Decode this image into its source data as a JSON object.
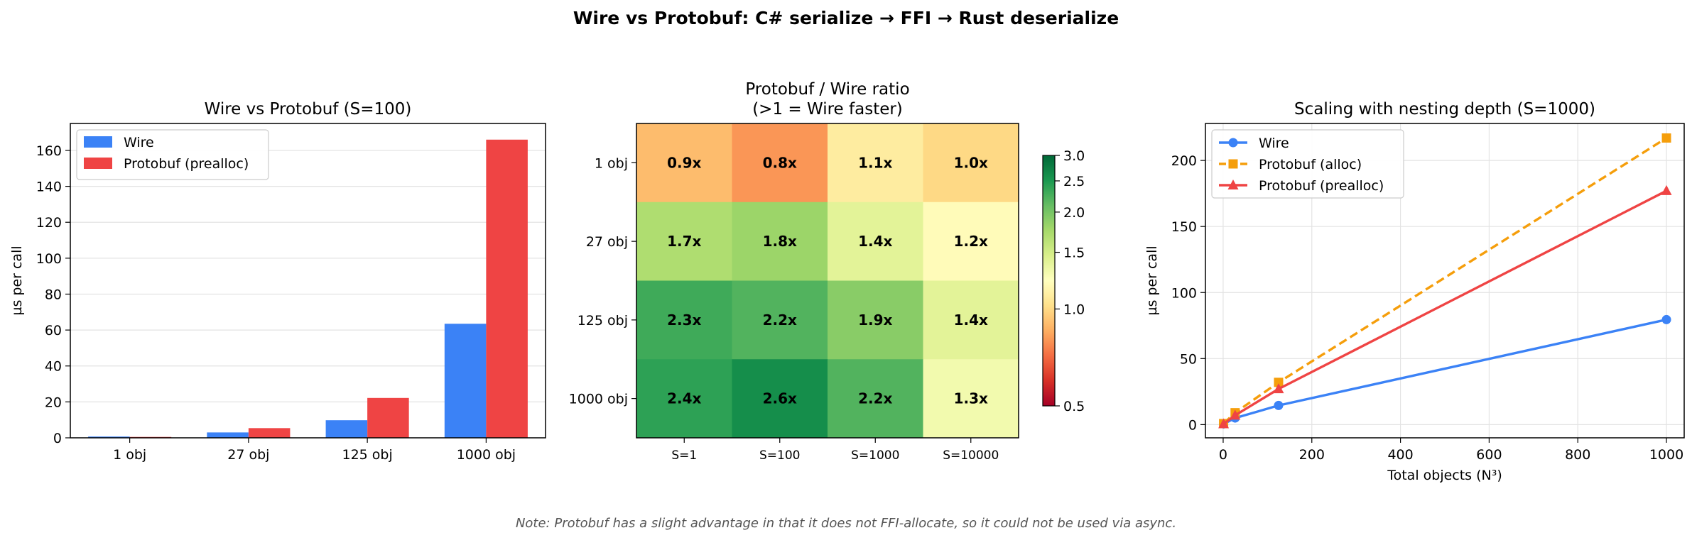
{
  "suptitle": "Wire vs Protobuf: C# serialize → FFI → Rust deserialize",
  "note": "Note: Protobuf has a slight advantage in that it does not FFI-allocate, so it could not be used via async.",
  "chart_data": [
    {
      "type": "bar",
      "title": "Wire vs Protobuf (S=100)",
      "xlabel": "",
      "ylabel": "µs per call",
      "categories": [
        "1 obj",
        "27 obj",
        "125 obj",
        "1000 obj"
      ],
      "series": [
        {
          "name": "Wire",
          "values": [
            0.7,
            3.0,
            9.8,
            63.5
          ],
          "color": "#3b82f6"
        },
        {
          "name": "Protobuf (prealloc)",
          "values": [
            0.5,
            5.4,
            22.2,
            166.0
          ],
          "color": "#ef4444"
        }
      ],
      "ylim": [
        0,
        175
      ],
      "yticks": [
        0,
        20,
        40,
        60,
        80,
        100,
        120,
        140,
        160
      ],
      "grid": "y",
      "legend": "top-left"
    },
    {
      "type": "heatmap",
      "title": "Protobuf / Wire ratio",
      "subtitle": "(>1 = Wire faster)",
      "x": [
        "S=1",
        "S=100",
        "S=1000",
        "S=10000"
      ],
      "y": [
        "1 obj",
        "27 obj",
        "125 obj",
        "1000 obj"
      ],
      "values": [
        [
          0.9,
          0.8,
          1.1,
          1.0
        ],
        [
          1.7,
          1.8,
          1.4,
          1.2
        ],
        [
          2.3,
          2.2,
          1.9,
          1.4
        ],
        [
          2.4,
          2.6,
          2.2,
          1.3
        ]
      ],
      "labels": [
        [
          "0.9x",
          "0.8x",
          "1.1x",
          "1.0x"
        ],
        [
          "1.7x",
          "1.8x",
          "1.4x",
          "1.2x"
        ],
        [
          "2.3x",
          "2.2x",
          "1.9x",
          "1.4x"
        ],
        [
          "2.4x",
          "2.6x",
          "2.2x",
          "1.3x"
        ]
      ],
      "colormap": "RdYlGn",
      "colorbar": {
        "range": [
          0.5,
          3.0
        ],
        "ticks": [
          "0.5",
          "1.0",
          "1.5",
          "2.0",
          "2.5",
          "3.0"
        ],
        "scale": "log"
      }
    },
    {
      "type": "line",
      "title": "Scaling with nesting depth (S=1000)",
      "xlabel": "Total objects (N³)",
      "ylabel": "µs per call",
      "x": [
        1,
        27,
        125,
        1000
      ],
      "series": [
        {
          "name": "Wire",
          "values": [
            0.5,
            5.0,
            14.5,
            79.5
          ],
          "color": "#3b82f6",
          "marker": "circle",
          "dash": "solid"
        },
        {
          "name": "Protobuf (alloc)",
          "values": [
            0.8,
            9.0,
            32.0,
            217.0
          ],
          "color": "#f59e0b",
          "marker": "square",
          "dash": "dashed"
        },
        {
          "name": "Protobuf (prealloc)",
          "values": [
            0.5,
            7.0,
            27.0,
            177.0
          ],
          "color": "#ef4444",
          "marker": "triangle",
          "dash": "solid"
        }
      ],
      "xlim": [
        -40,
        1040
      ],
      "ylim": [
        -10,
        228
      ],
      "xticks": [
        0,
        200,
        400,
        600,
        800,
        1000
      ],
      "yticks": [
        0,
        50,
        100,
        150,
        200
      ],
      "grid": "both",
      "legend": "top-left"
    }
  ]
}
